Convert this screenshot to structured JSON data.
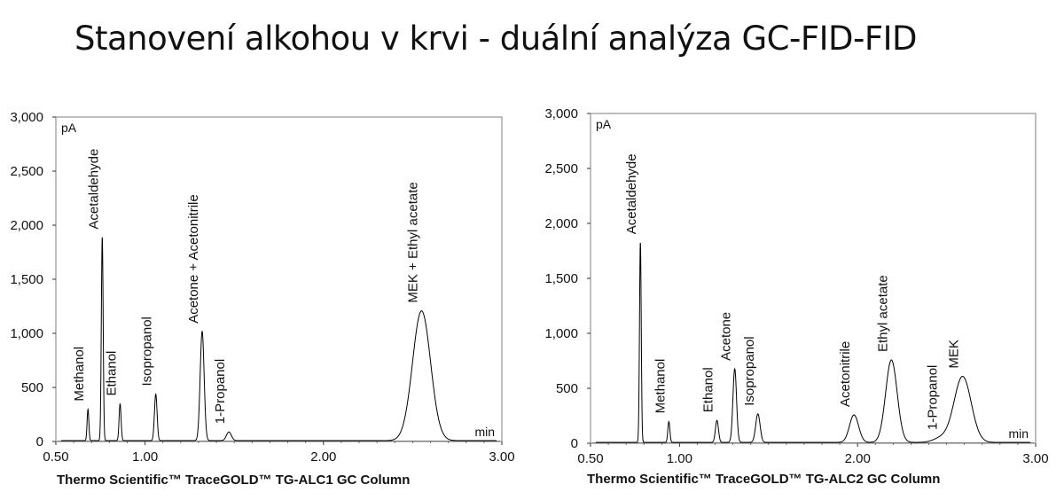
{
  "title": "Stanovení alkohou v krvi - duální analýza GC-FID-FID",
  "chart_data": [
    {
      "type": "line",
      "caption": "Thermo Scientific™ TraceGOLD™ TG-ALC1 GC Column",
      "y_unit": "pA",
      "x_unit": "min",
      "xlim": [
        0.5,
        3.0
      ],
      "ylim": [
        0,
        3000
      ],
      "x_ticks": [
        "0.50",
        "1.00",
        "2.00",
        "3.00"
      ],
      "x_tick_values": [
        0.5,
        1.0,
        2.0,
        3.0
      ],
      "y_ticks": [
        "0",
        "500",
        "1,000",
        "1,500",
        "2,000",
        "2,500",
        "3,000"
      ],
      "y_tick_values": [
        0,
        500,
        1000,
        1500,
        2000,
        2500,
        3000
      ],
      "baseline_color": "#cc0000",
      "trace_color": "#000000",
      "peaks": [
        {
          "label": "Methanol",
          "time": 0.68,
          "height": 290
        },
        {
          "label": "Acetaldehyde",
          "time": 0.76,
          "height": 1880
        },
        {
          "label": "Ethanol",
          "time": 0.86,
          "height": 340
        },
        {
          "label": "Isopropanol",
          "time": 1.06,
          "height": 430
        },
        {
          "label": "Acetone + Acetonitrile",
          "time": 1.32,
          "height": 1010
        },
        {
          "label": "1-Propanol",
          "time": 1.47,
          "height": 80
        },
        {
          "label": "MEK + Ethyl acetate",
          "time": 2.55,
          "height": 1200
        }
      ]
    },
    {
      "type": "line",
      "caption": "Thermo Scientific™ TraceGOLD™ TG-ALC2 GC Column",
      "y_unit": "pA",
      "x_unit": "min",
      "xlim": [
        0.5,
        3.0
      ],
      "ylim": [
        0,
        3000
      ],
      "x_ticks": [
        "0.50",
        "1.00",
        "2.00",
        "3.00"
      ],
      "x_tick_values": [
        0.5,
        1.0,
        2.0,
        3.0
      ],
      "y_ticks": [
        "0",
        "500",
        "1,000",
        "1,500",
        "2,000",
        "2,500",
        "3,000"
      ],
      "y_tick_values": [
        0,
        500,
        1000,
        1500,
        2000,
        2500,
        3000
      ],
      "baseline_color": "#cc0000",
      "trace_color": "#000000",
      "peaks": [
        {
          "label": "Acetaldehyde",
          "time": 0.78,
          "height": 1820
        },
        {
          "label": "Methanol",
          "time": 0.94,
          "height": 190
        },
        {
          "label": "Ethanol",
          "time": 1.21,
          "height": 200
        },
        {
          "label": "Acetone",
          "time": 1.31,
          "height": 670
        },
        {
          "label": "Isopropanol",
          "time": 1.44,
          "height": 260
        },
        {
          "label": "Acetonitrile",
          "time": 1.98,
          "height": 250
        },
        {
          "label": "Ethyl acetate",
          "time": 2.19,
          "height": 750
        },
        {
          "label": "1-Propanol",
          "time": 2.47,
          "height": 40
        },
        {
          "label": "MEK",
          "time": 2.59,
          "height": 600
        }
      ]
    }
  ]
}
